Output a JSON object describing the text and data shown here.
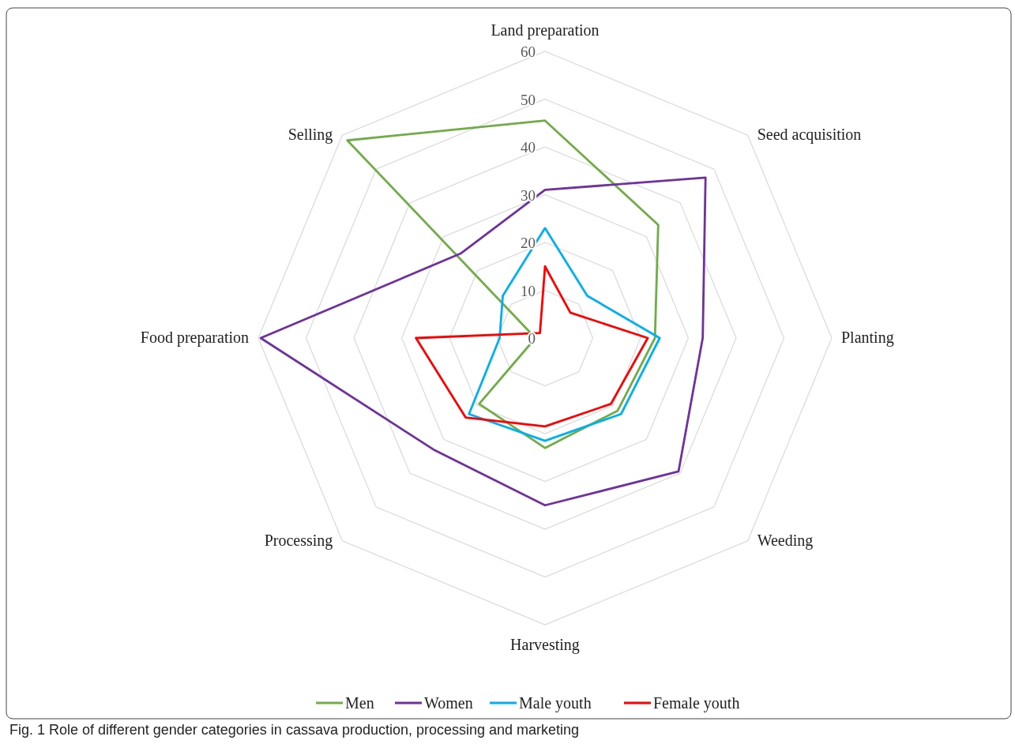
{
  "chart_data": {
    "type": "radar",
    "categories": [
      "Land preparation",
      "Seed acquisition",
      "Planting",
      "Weeding",
      "Harvesting",
      "Processing",
      "Food preparation",
      "Selling"
    ],
    "series": [
      {
        "name": "Men",
        "color": "#70ad47",
        "values": [
          45.5,
          33.5,
          23,
          21.5,
          23,
          19.5,
          2,
          58.5
        ]
      },
      {
        "name": "Women",
        "color": "#7030a0",
        "values": [
          31,
          47.5,
          33,
          39.5,
          35,
          33,
          59.5,
          25
        ]
      },
      {
        "name": "Male youth",
        "color": "#00b0f0",
        "values": [
          23,
          12.5,
          24,
          22.5,
          21.5,
          22.5,
          9.5,
          12.5
        ]
      },
      {
        "name": "Female youth",
        "color": "#ff0000",
        "values": [
          15,
          7.5,
          21.5,
          19.5,
          18.5,
          23.5,
          27,
          1.5
        ]
      }
    ],
    "ylim": [
      0,
      60
    ],
    "yticks": [
      0,
      10,
      20,
      30,
      40,
      50,
      60
    ],
    "grid": true,
    "legend": "bottom",
    "marker": "none",
    "line_style": "solid",
    "annotations": [
      "Fig. 1  Role of different gender categories in cassava production, processing and marketing"
    ]
  }
}
